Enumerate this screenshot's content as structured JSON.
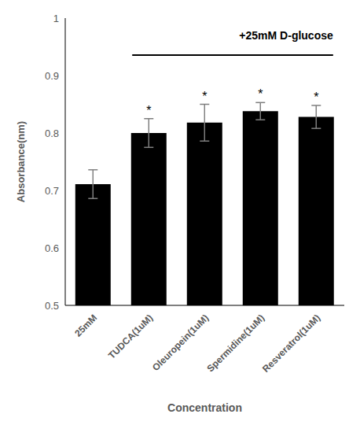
{
  "chart_data": {
    "type": "bar",
    "categories": [
      "25mM",
      "TUDCA(1uM)",
      "Oleuropein(1uM)",
      "Spermidine(1uM)",
      "Resveratrol(1uM)"
    ],
    "values": [
      0.711,
      0.8,
      0.818,
      0.838,
      0.828
    ],
    "errors": [
      0.025,
      0.025,
      0.032,
      0.015,
      0.02
    ],
    "significance": [
      null,
      "*",
      "*",
      "*",
      "*"
    ],
    "color": "#000000",
    "ylim": [
      0.5,
      1
    ],
    "yticks": [
      0.5,
      0.6,
      0.7,
      0.8,
      0.9,
      1
    ],
    "grid": false,
    "x_label": "Concentration",
    "y_label": "Absorbance(nm)",
    "annotation": "+25mM D-glucose"
  }
}
